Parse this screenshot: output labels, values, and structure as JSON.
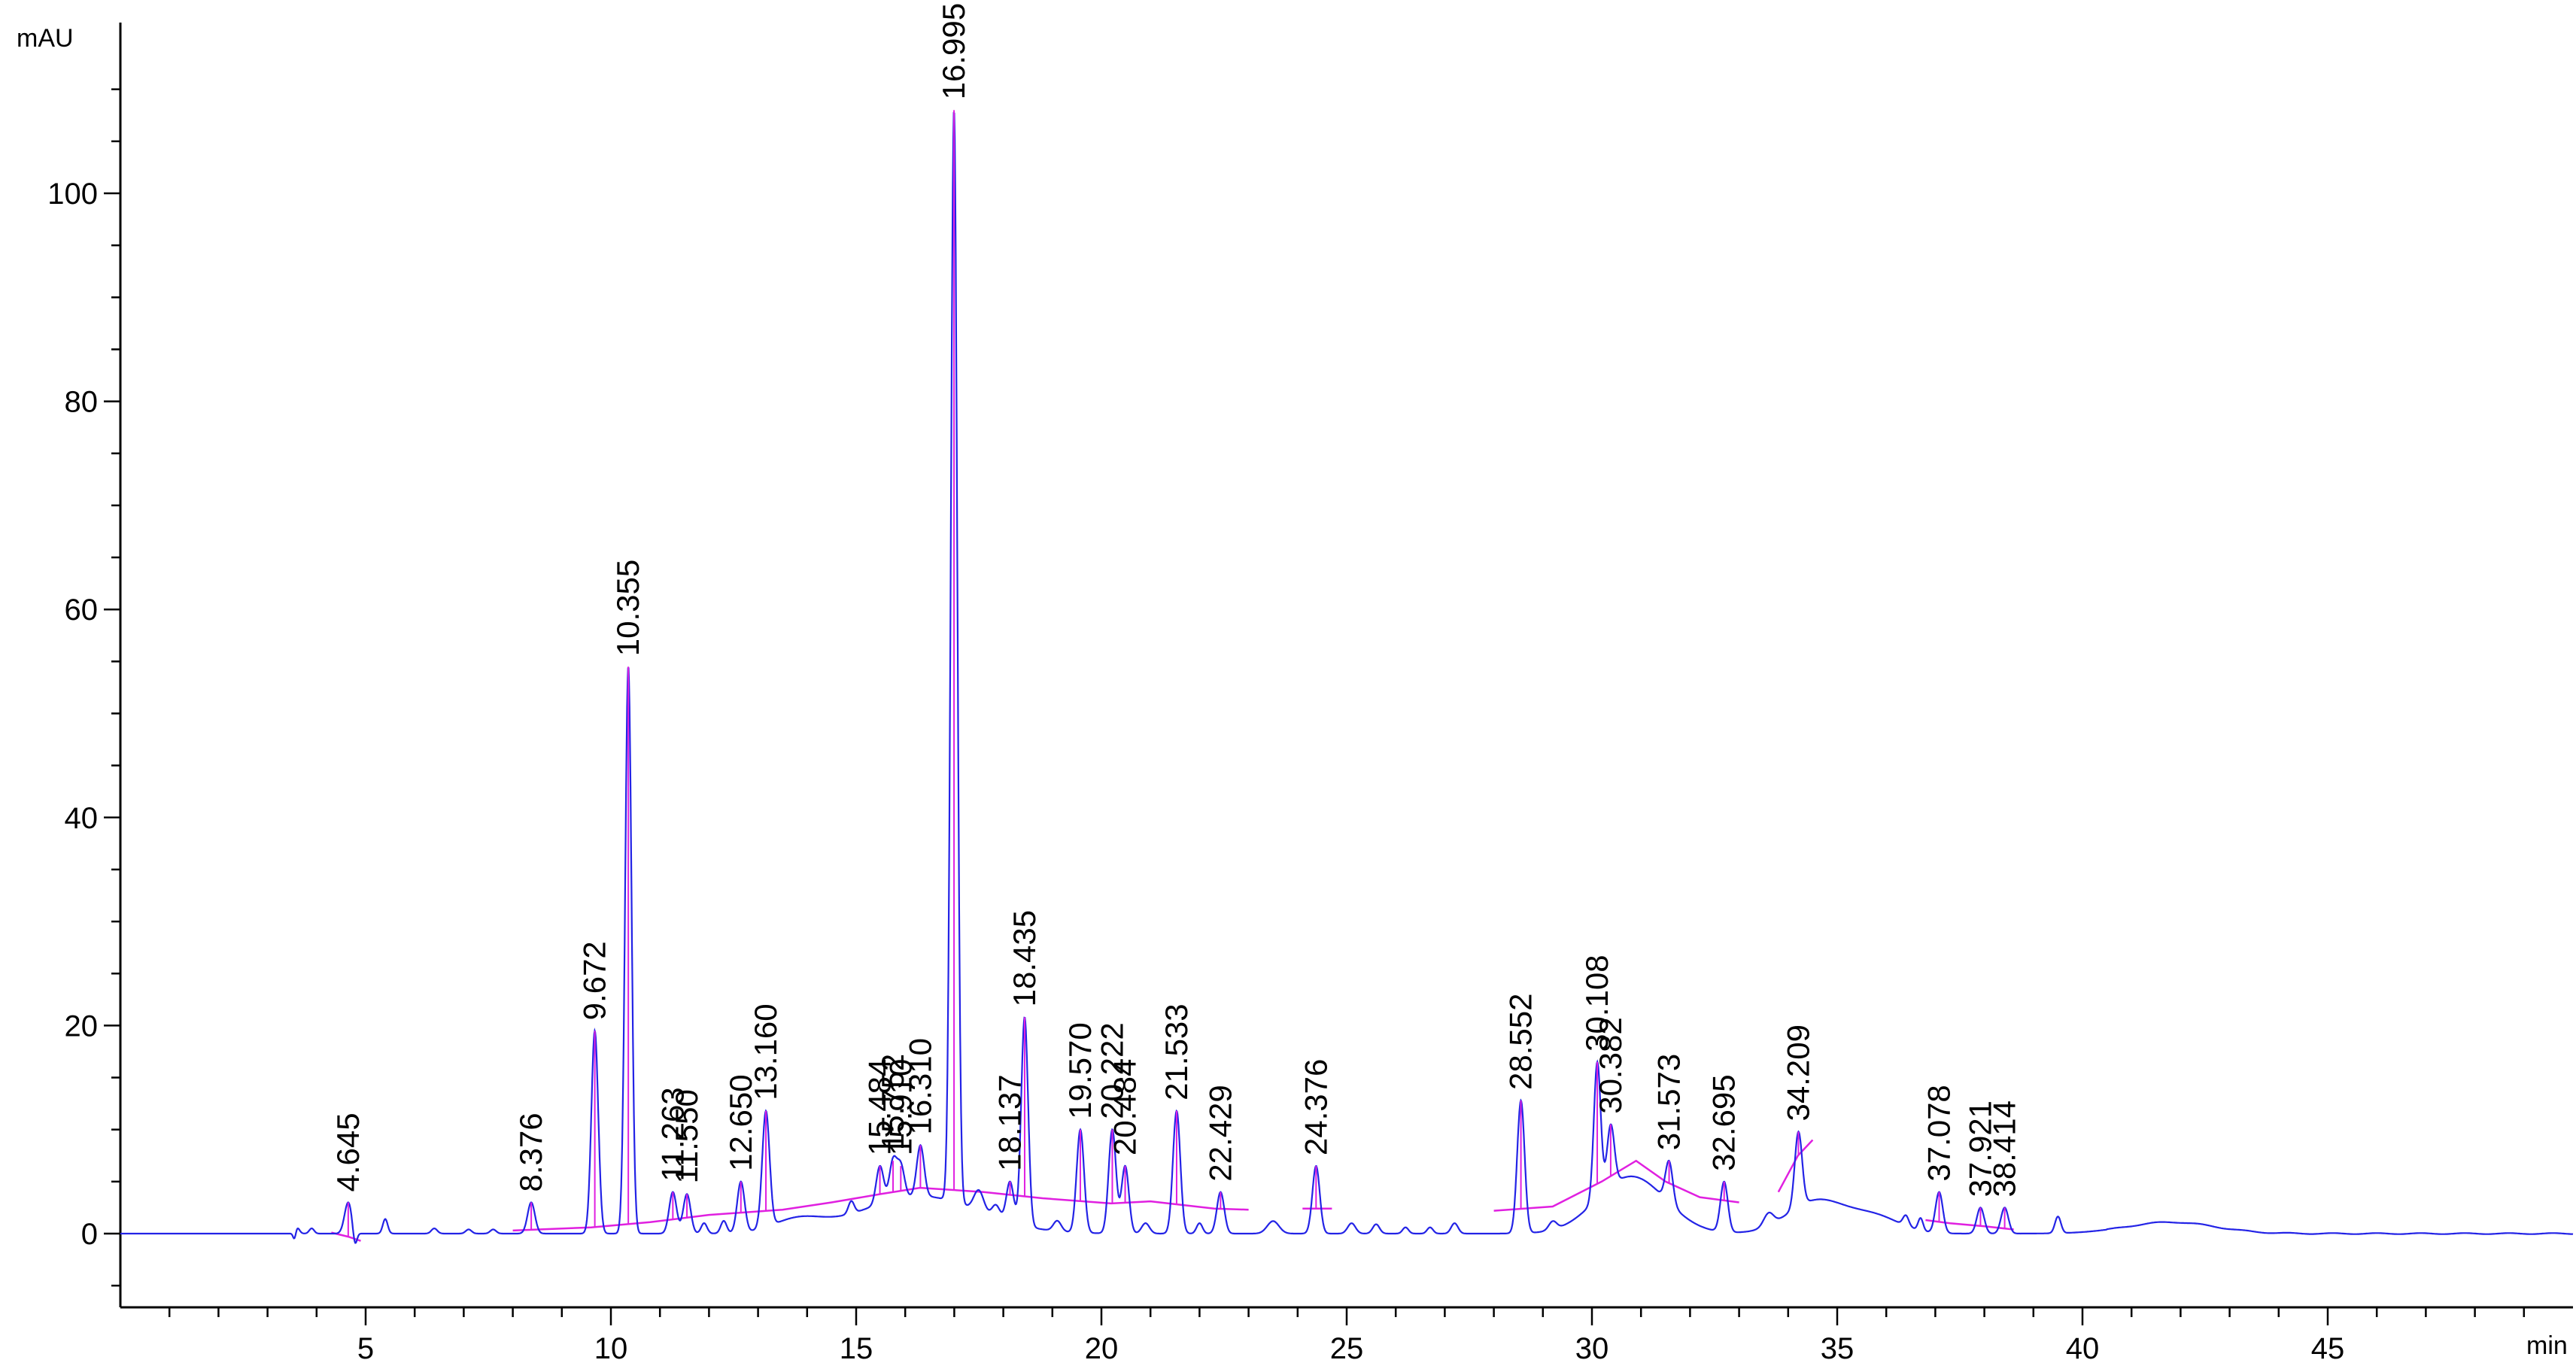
{
  "chart_data": {
    "type": "line",
    "title": "",
    "xlabel": "min",
    "ylabel": "mAU",
    "xlim": [
      0,
      50
    ],
    "ylim": [
      -6,
      115
    ],
    "x_ticks": [
      5,
      10,
      15,
      20,
      25,
      30,
      35,
      40,
      45
    ],
    "y_ticks": [
      0,
      20,
      40,
      60,
      80,
      100
    ],
    "grid": false,
    "colors": {
      "signal": "#2323e6",
      "baseline": "#e020e0",
      "axis": "#000000"
    },
    "peaks": [
      {
        "rt": 4.645,
        "label": "4.645",
        "height": 3.0
      },
      {
        "rt": 8.376,
        "label": "8.376",
        "height": 3.0
      },
      {
        "rt": 9.672,
        "label": "9.672",
        "height": 19.5
      },
      {
        "rt": 10.355,
        "label": "10.355",
        "height": 54.5
      },
      {
        "rt": 11.263,
        "label": "11.263",
        "height": 4.0
      },
      {
        "rt": 11.55,
        "label": "11.550",
        "height": 3.8
      },
      {
        "rt": 12.65,
        "label": "12.650",
        "height": 5.0
      },
      {
        "rt": 13.16,
        "label": "13.160",
        "height": 11.8
      },
      {
        "rt": 15.484,
        "label": "15.484",
        "height": 6.5
      },
      {
        "rt": 15.752,
        "label": "15.752",
        "height": 7.0
      },
      {
        "rt": 15.91,
        "label": "15.910",
        "height": 6.5
      },
      {
        "rt": 16.31,
        "label": "16.310",
        "height": 8.5
      },
      {
        "rt": 16.995,
        "label": "16.995",
        "height": 108.0
      },
      {
        "rt": 18.137,
        "label": "18.137",
        "height": 5.0
      },
      {
        "rt": 18.435,
        "label": "18.435",
        "height": 20.8
      },
      {
        "rt": 19.57,
        "label": "19.570",
        "height": 10.0
      },
      {
        "rt": 20.222,
        "label": "20.222",
        "height": 10.0
      },
      {
        "rt": 20.484,
        "label": "20.484",
        "height": 6.5
      },
      {
        "rt": 21.533,
        "label": "21.533",
        "height": 11.8
      },
      {
        "rt": 22.429,
        "label": "22.429",
        "height": 4.0
      },
      {
        "rt": 24.376,
        "label": "24.376",
        "height": 6.5
      },
      {
        "rt": 28.552,
        "label": "28.552",
        "height": 12.8
      },
      {
        "rt": 30.108,
        "label": "30.108",
        "height": 16.5
      },
      {
        "rt": 30.382,
        "label": "30.382",
        "height": 10.5
      },
      {
        "rt": 31.573,
        "label": "31.573",
        "height": 7.0
      },
      {
        "rt": 32.695,
        "label": "32.695",
        "height": 5.0
      },
      {
        "rt": 34.209,
        "label": "34.209",
        "height": 9.8
      },
      {
        "rt": 37.078,
        "label": "37.078",
        "height": 4.0
      },
      {
        "rt": 37.921,
        "label": "37.921",
        "height": 2.5
      },
      {
        "rt": 38.414,
        "label": "38.414",
        "height": 2.5
      }
    ],
    "baseline_segments": [
      [
        [
          4.3,
          0.1
        ],
        [
          4.645,
          -0.3
        ],
        [
          4.9,
          -0.7
        ]
      ],
      [
        [
          8.0,
          0.3
        ],
        [
          9.6,
          0.6
        ],
        [
          10.8,
          1.1
        ],
        [
          12.0,
          1.8
        ],
        [
          13.5,
          2.3
        ],
        [
          14.5,
          3.0
        ],
        [
          15.5,
          3.8
        ],
        [
          16.3,
          4.4
        ],
        [
          17.6,
          4.0
        ],
        [
          18.8,
          3.4
        ],
        [
          20.2,
          2.9
        ],
        [
          21.0,
          3.1
        ],
        [
          22.3,
          2.4
        ],
        [
          23.0,
          2.3
        ]
      ],
      [
        [
          24.1,
          2.4
        ],
        [
          24.7,
          2.4
        ]
      ],
      [
        [
          28.0,
          2.2
        ],
        [
          29.2,
          2.6
        ],
        [
          30.2,
          5.0
        ],
        [
          30.9,
          7.0
        ],
        [
          31.5,
          5.0
        ],
        [
          32.2,
          3.5
        ],
        [
          33.0,
          3.0
        ]
      ],
      [
        [
          33.8,
          4.0
        ],
        [
          34.2,
          7.5
        ],
        [
          34.5,
          9.0
        ]
      ],
      [
        [
          36.8,
          1.3
        ],
        [
          37.3,
          1.0
        ],
        [
          38.0,
          0.7
        ],
        [
          38.6,
          0.4
        ]
      ]
    ]
  }
}
